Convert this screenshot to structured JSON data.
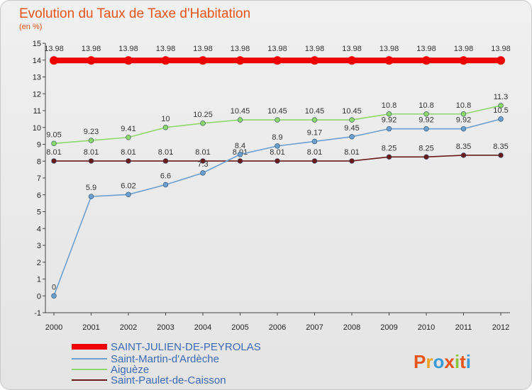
{
  "chart_data": {
    "type": "line",
    "title": "Evolution du Taux de Taxe d'Habitation",
    "subtitle": "(en %)",
    "x": [
      "2000",
      "2001",
      "2002",
      "2003",
      "2004",
      "2005",
      "2006",
      "2007",
      "2008",
      "2009",
      "2010",
      "2011",
      "2012"
    ],
    "ylim": [
      -1,
      15
    ],
    "yticks": [
      -1,
      0,
      1,
      2,
      3,
      4,
      5,
      6,
      7,
      8,
      9,
      10,
      11,
      12,
      13,
      14,
      15
    ],
    "grid": false,
    "legend_position": "bottom-left",
    "series": [
      {
        "name": "SAINT-JULIEN-DE-PEYROLAS",
        "color": "#ee0000",
        "values": [
          13.98,
          13.98,
          13.98,
          13.98,
          13.98,
          13.98,
          13.98,
          13.98,
          13.98,
          13.98,
          13.98,
          13.98,
          13.98
        ],
        "labels": [
          "13.98",
          "13.98",
          "13.98",
          "13.98",
          "13.98",
          "13.98",
          "13.98",
          "13.98",
          "13.98",
          "13.98",
          "13.98",
          "13.98",
          "13.98"
        ]
      },
      {
        "name": "Saint-Martin-d'Ardèche",
        "color": "#6a9fd0",
        "values": [
          0,
          5.9,
          6.02,
          6.6,
          7.3,
          8.4,
          8.9,
          9.17,
          9.45,
          9.92,
          9.92,
          9.92,
          10.5
        ],
        "labels": [
          "0",
          "5.9",
          "6.02",
          "6.6",
          "7.3",
          "8.4",
          "8.9",
          "9.17",
          "9.45",
          "9.92",
          "9.92",
          "9.92",
          "10.5"
        ]
      },
      {
        "name": "Aiguèze",
        "color": "#8cd86a",
        "values": [
          9.05,
          9.23,
          9.41,
          10,
          10.25,
          10.45,
          10.45,
          10.45,
          10.45,
          10.8,
          10.8,
          10.8,
          11.3
        ],
        "labels": [
          "9.05",
          "9.23",
          "9.41",
          "10",
          "10.25",
          "10.45",
          "10.45",
          "10.45",
          "10.45",
          "10.8",
          "10.8",
          "10.8",
          "11.3"
        ]
      },
      {
        "name": "Saint-Paulet-de-Caisson",
        "color": "#6b1a1a",
        "values": [
          8.01,
          8.01,
          8.01,
          8.01,
          8.01,
          8.01,
          8.01,
          8.01,
          8.01,
          8.25,
          8.25,
          8.35,
          8.35
        ],
        "labels": [
          "8.01",
          "8.01",
          "8.01",
          "8.01",
          "8.01",
          "8.01",
          "8.01",
          "8.01",
          "8.01",
          "8.25",
          "8.25",
          "8.35",
          "8.35"
        ]
      }
    ]
  },
  "logo": {
    "text": "Proxiti",
    "colors": [
      "#e8541a",
      "#f0a020",
      "#3a9ad8",
      "#e8541a",
      "#8ac43a",
      "#e8541a",
      "#3a9ad8"
    ]
  }
}
